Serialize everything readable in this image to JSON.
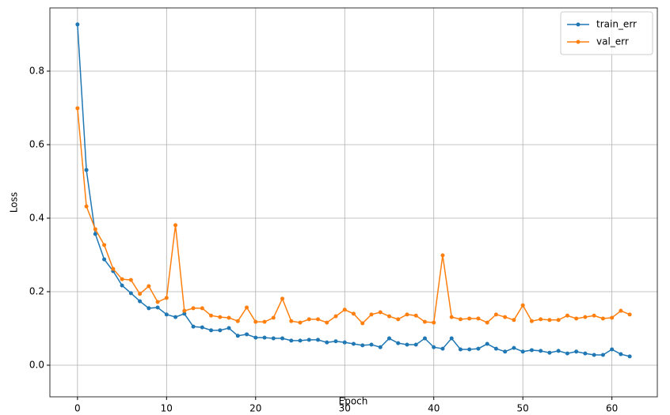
{
  "chart_data": {
    "type": "line",
    "xlabel": "Epoch",
    "ylabel": "Loss",
    "x": [
      0,
      1,
      2,
      3,
      4,
      5,
      6,
      7,
      8,
      9,
      10,
      11,
      12,
      13,
      14,
      15,
      16,
      17,
      18,
      19,
      20,
      21,
      22,
      23,
      24,
      25,
      26,
      27,
      28,
      29,
      30,
      31,
      32,
      33,
      34,
      35,
      36,
      37,
      38,
      39,
      40,
      41,
      42,
      43,
      44,
      45,
      46,
      47,
      48,
      49,
      50,
      51,
      52,
      53,
      54,
      55,
      56,
      57,
      58,
      59,
      60,
      61,
      62
    ],
    "series": [
      {
        "name": "train_err",
        "color": "#1f77b4",
        "values": [
          0.927,
          0.531,
          0.357,
          0.288,
          0.256,
          0.217,
          0.196,
          0.174,
          0.155,
          0.157,
          0.138,
          0.131,
          0.14,
          0.105,
          0.103,
          0.095,
          0.095,
          0.101,
          0.08,
          0.084,
          0.075,
          0.075,
          0.073,
          0.073,
          0.067,
          0.067,
          0.069,
          0.069,
          0.062,
          0.065,
          0.062,
          0.058,
          0.054,
          0.056,
          0.049,
          0.073,
          0.06,
          0.056,
          0.056,
          0.073,
          0.049,
          0.045,
          0.073,
          0.043,
          0.043,
          0.045,
          0.058,
          0.045,
          0.037,
          0.047,
          0.037,
          0.041,
          0.039,
          0.034,
          0.039,
          0.032,
          0.037,
          0.032,
          0.028,
          0.028,
          0.043,
          0.03,
          0.024
        ]
      },
      {
        "name": "val_err",
        "color": "#ff7f0e",
        "values": [
          0.699,
          0.432,
          0.37,
          0.327,
          0.262,
          0.234,
          0.232,
          0.194,
          0.215,
          0.172,
          0.183,
          0.381,
          0.148,
          0.155,
          0.155,
          0.135,
          0.131,
          0.129,
          0.12,
          0.157,
          0.118,
          0.118,
          0.129,
          0.181,
          0.12,
          0.116,
          0.125,
          0.125,
          0.116,
          0.133,
          0.151,
          0.14,
          0.114,
          0.138,
          0.144,
          0.133,
          0.125,
          0.138,
          0.135,
          0.118,
          0.116,
          0.299,
          0.131,
          0.125,
          0.127,
          0.127,
          0.116,
          0.138,
          0.131,
          0.123,
          0.163,
          0.12,
          0.125,
          0.123,
          0.123,
          0.135,
          0.127,
          0.131,
          0.135,
          0.127,
          0.129,
          0.148,
          0.138
        ]
      }
    ],
    "xlim": [
      -3.1,
      65.1
    ],
    "xticks": [
      0,
      10,
      20,
      30,
      40,
      50,
      60
    ],
    "ylim": [
      -0.086,
      0.972
    ],
    "yticks": [
      {
        "value": 0,
        "label": "0.0"
      },
      0.2,
      0.4,
      0.6,
      0.8
    ],
    "grid": true,
    "legend": "upper right"
  }
}
